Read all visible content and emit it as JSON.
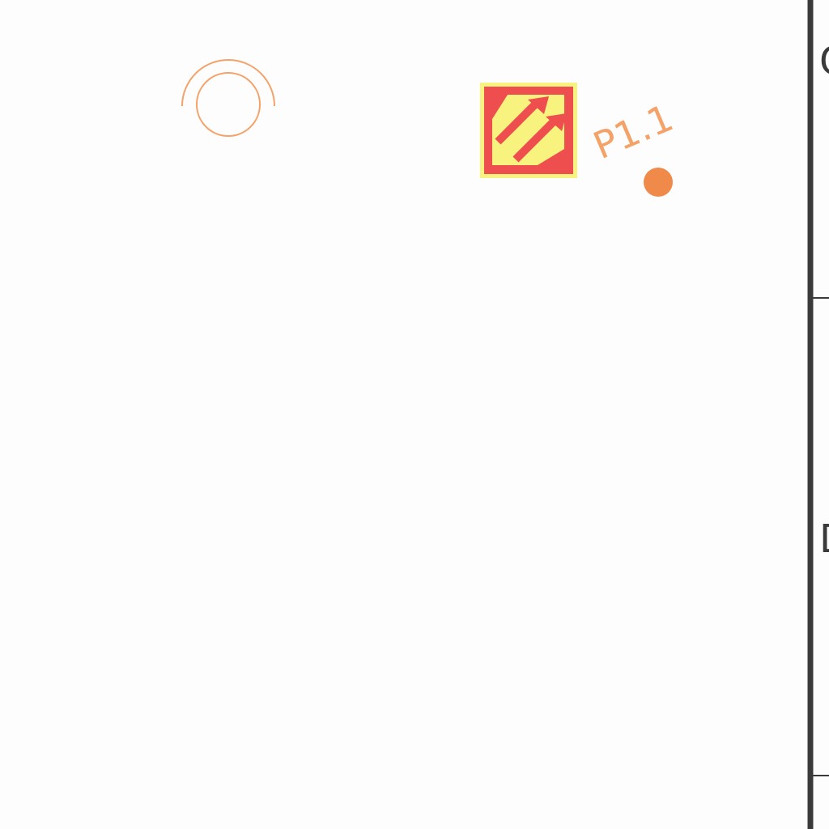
{
  "drawing": {
    "pad_designator": "P1.1",
    "frame_zone_letters": [
      "C",
      "D"
    ]
  },
  "colors": {
    "background": "#fdfdfd",
    "overlay_orange": "#f4a268",
    "pin_dot": "#f08a4b",
    "marker_fill": "#ee4e4e",
    "marker_highlight": "#f8f37e",
    "frame_line": "#3a3a3a"
  },
  "icons": {
    "rotation_marker": "circle-arc-icon",
    "origin_marker": "hazard-arrows-icon",
    "pin_one": "dot-icon"
  }
}
